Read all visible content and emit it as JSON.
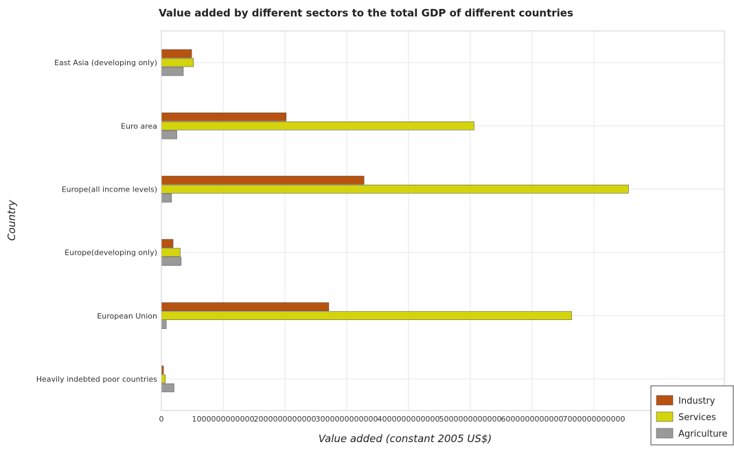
{
  "chart_data": {
    "type": "bar",
    "orientation": "horizontal",
    "title": "Value added by different sectors to the total GDP of different countries",
    "xlabel": "Value added (constant 2005 US$)",
    "ylabel": "Country",
    "xlim": [
      0,
      8000000000000
    ],
    "x_ticks": [
      0,
      1000000000000,
      2000000000000,
      3000000000000,
      4000000000000,
      5000000000000,
      6000000000000,
      7000000000000
    ],
    "x_tick_labels": [
      "0",
      "1000000000000",
      "2000000000000",
      "3000000000000",
      "4000000000000",
      "5000000000000",
      "6000000000000",
      "7000000000000"
    ],
    "categories": [
      "East Asia (developing only)",
      "Euro area",
      "Europe(all income levels)",
      "Europe(developing only)",
      "European Union",
      "Heavily indebted poor countries"
    ],
    "series": [
      {
        "name": "Industry",
        "color": "#b8520f",
        "values": [
          490000000000,
          2020000000000,
          3280000000000,
          190000000000,
          2710000000000,
          35000000000
        ]
      },
      {
        "name": "Services",
        "color": "#d4d40c",
        "values": [
          520000000000,
          5060000000000,
          7560000000000,
          305000000000,
          6640000000000,
          65000000000
        ]
      },
      {
        "name": "Agriculture",
        "color": "#9a9a9a",
        "values": [
          355000000000,
          250000000000,
          165000000000,
          320000000000,
          80000000000,
          205000000000
        ]
      }
    ],
    "grid": true,
    "legend_position": "bottom-right"
  }
}
